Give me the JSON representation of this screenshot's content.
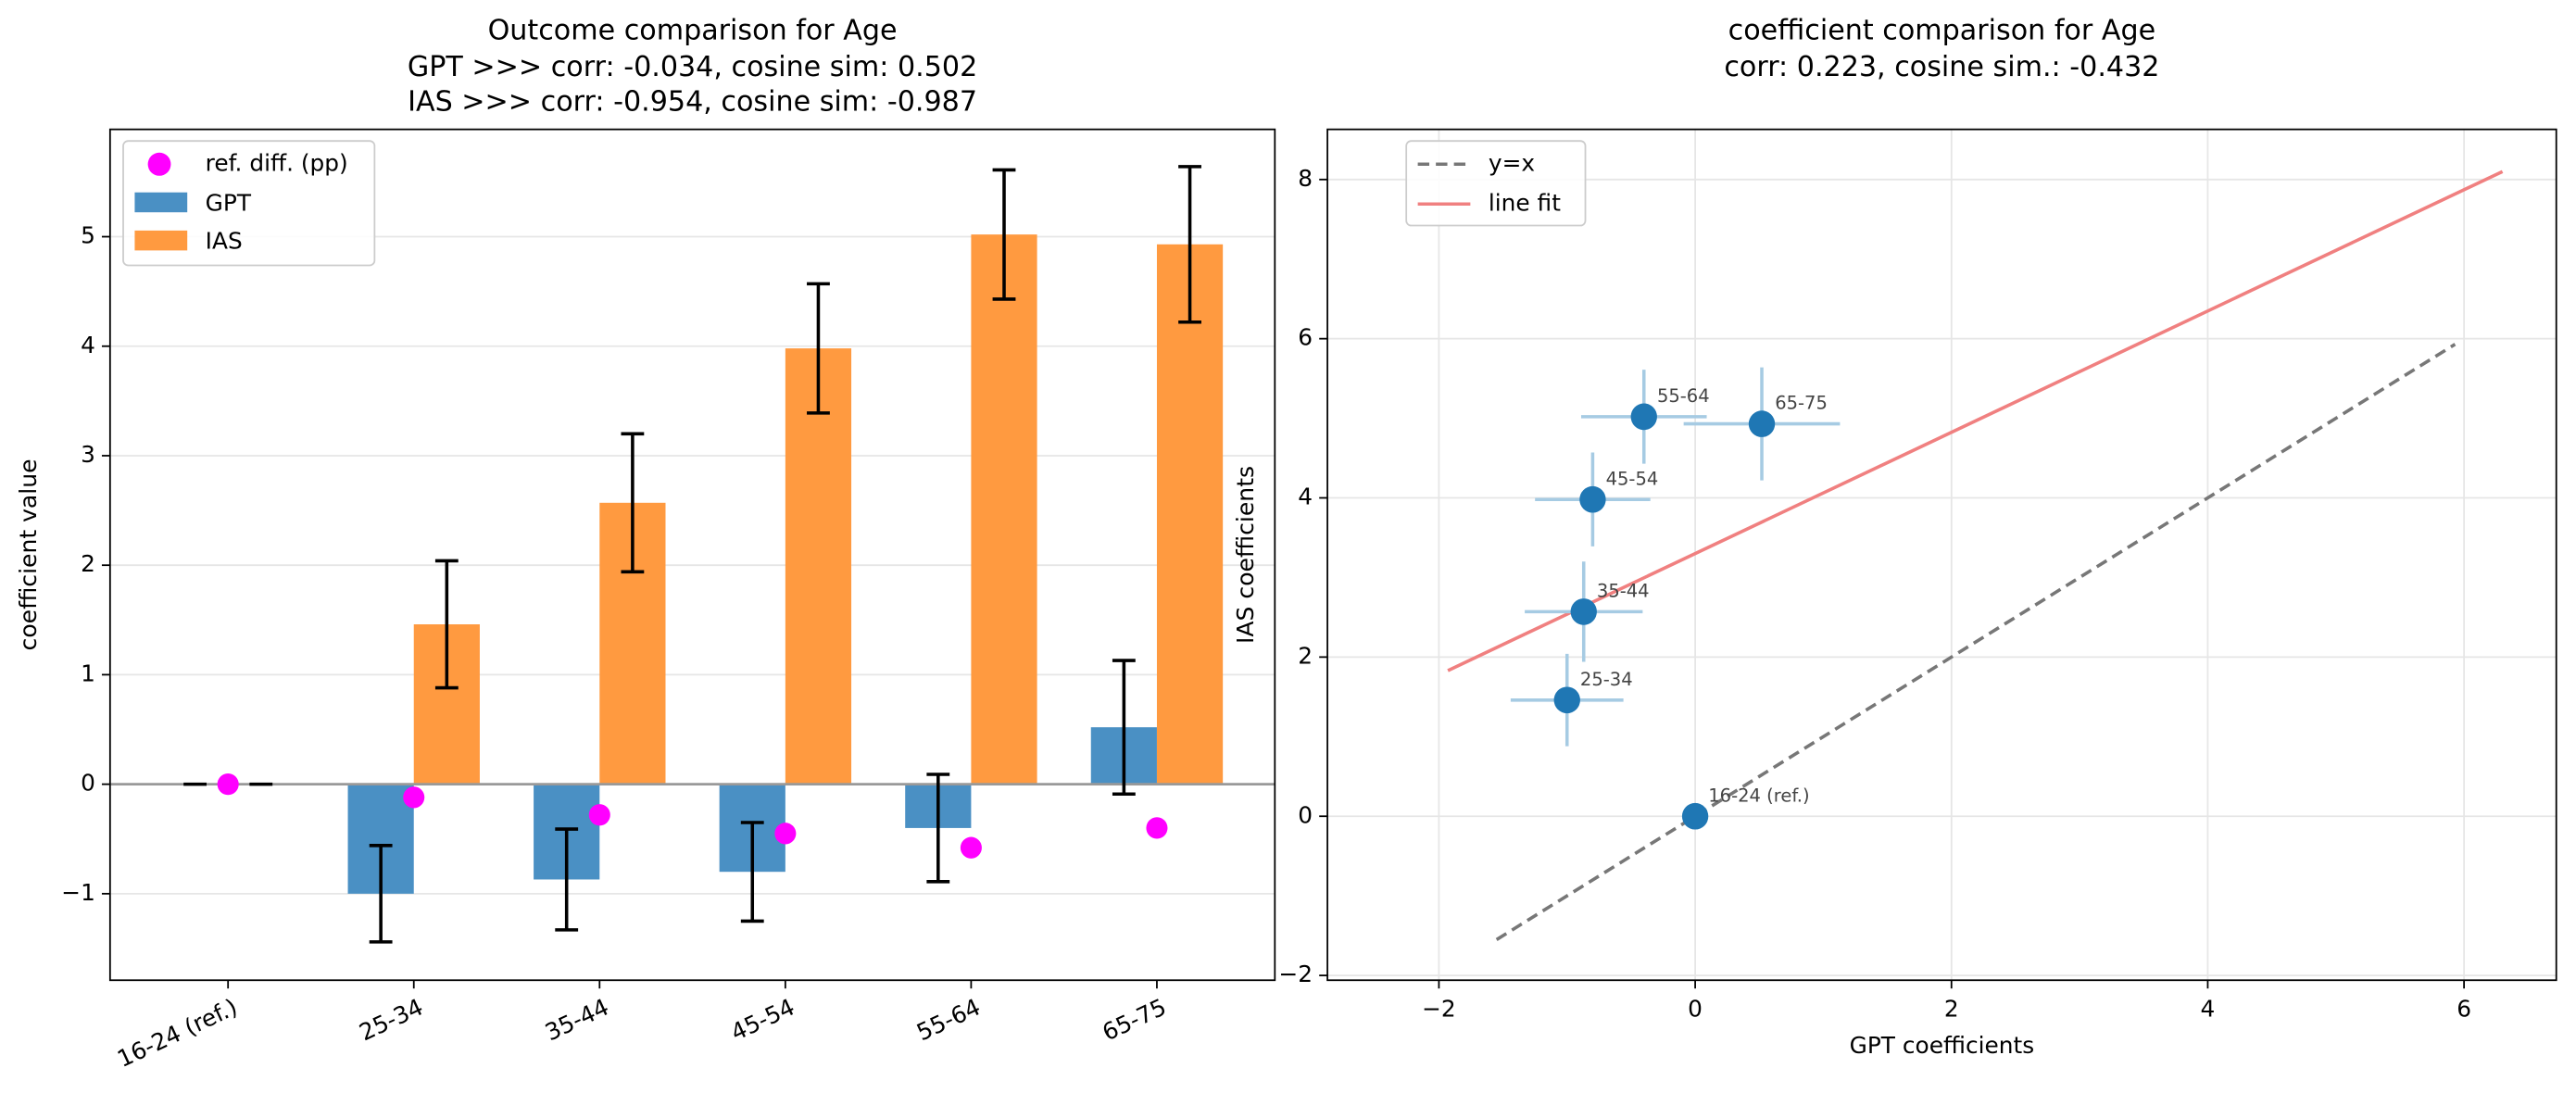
{
  "chart_data": [
    {
      "type": "bar",
      "title": "Outcome comparison for Age",
      "subtitle": [
        "GPT >>> corr: -0.034,  cosine sim: 0.502",
        "IAS >>> corr: -0.954,  cosine sim: -0.987"
      ],
      "ylabel": "coefficient value",
      "categories": [
        "16-24 (ref.)",
        "25-34",
        "35-44",
        "45-54",
        "55-64",
        "65-75"
      ],
      "series": [
        {
          "name": "GPT",
          "color": "#4a90c4",
          "values": [
            0,
            -1.0,
            -0.87,
            -0.8,
            -0.4,
            0.52
          ],
          "errors": [
            0,
            0.44,
            0.46,
            0.45,
            0.49,
            0.61
          ]
        },
        {
          "name": "IAS",
          "color": "#ff9a40",
          "values": [
            0,
            1.46,
            2.57,
            3.98,
            5.02,
            4.93
          ],
          "errors": [
            0,
            0.58,
            0.63,
            0.59,
            0.59,
            0.71
          ]
        }
      ],
      "points": {
        "name": "ref. diff. (pp)",
        "color": "#ff00ff",
        "values": [
          0,
          -0.12,
          -0.28,
          -0.45,
          -0.58,
          -0.4
        ]
      },
      "ylim": [
        -1.79,
        5.98
      ],
      "yticks": [
        {
          "value": -1,
          "label": "−1"
        },
        0,
        1,
        2,
        3,
        4,
        5
      ],
      "grid": true,
      "legend": "upper left"
    },
    {
      "type": "scatter",
      "title": "coefficient comparison for Age",
      "subtitle": [
        "corr: 0.223, cosine sim.: -0.432"
      ],
      "xlabel": "GPT coefficients",
      "ylabel": "IAS coefficients",
      "points": {
        "color": "#1f77b4",
        "err_color": "#a6cbe3",
        "labels": [
          "16-24 (ref.)",
          "25-34",
          "35-44",
          "45-54",
          "55-64",
          "65-75"
        ],
        "x": [
          0,
          -1.0,
          -0.87,
          -0.8,
          -0.4,
          0.52
        ],
        "y": [
          0,
          1.46,
          2.57,
          3.98,
          5.02,
          4.93
        ],
        "x_err": [
          0,
          0.44,
          0.46,
          0.45,
          0.49,
          0.61
        ],
        "y_err": [
          0,
          0.58,
          0.63,
          0.59,
          0.59,
          0.71
        ]
      },
      "series": [
        {
          "name": "y=x",
          "color": "#777777",
          "dashed": true,
          "x": [
            -1.55,
            5.93
          ],
          "y": [
            -1.55,
            5.93
          ]
        },
        {
          "name": "line fit",
          "color": "#f08080",
          "x": [
            -1.93,
            6.3
          ],
          "y": [
            1.83,
            8.1
          ]
        }
      ],
      "xlim": [
        -2.87,
        6.72
      ],
      "ylim": [
        -2.06,
        8.63
      ],
      "xticks": [
        {
          "value": -2,
          "label": "−2"
        },
        0,
        2,
        4,
        6
      ],
      "yticks": [
        {
          "value": -2,
          "label": "−2"
        },
        0,
        2,
        4,
        6,
        8
      ],
      "grid": true,
      "legend": "upper left"
    }
  ]
}
